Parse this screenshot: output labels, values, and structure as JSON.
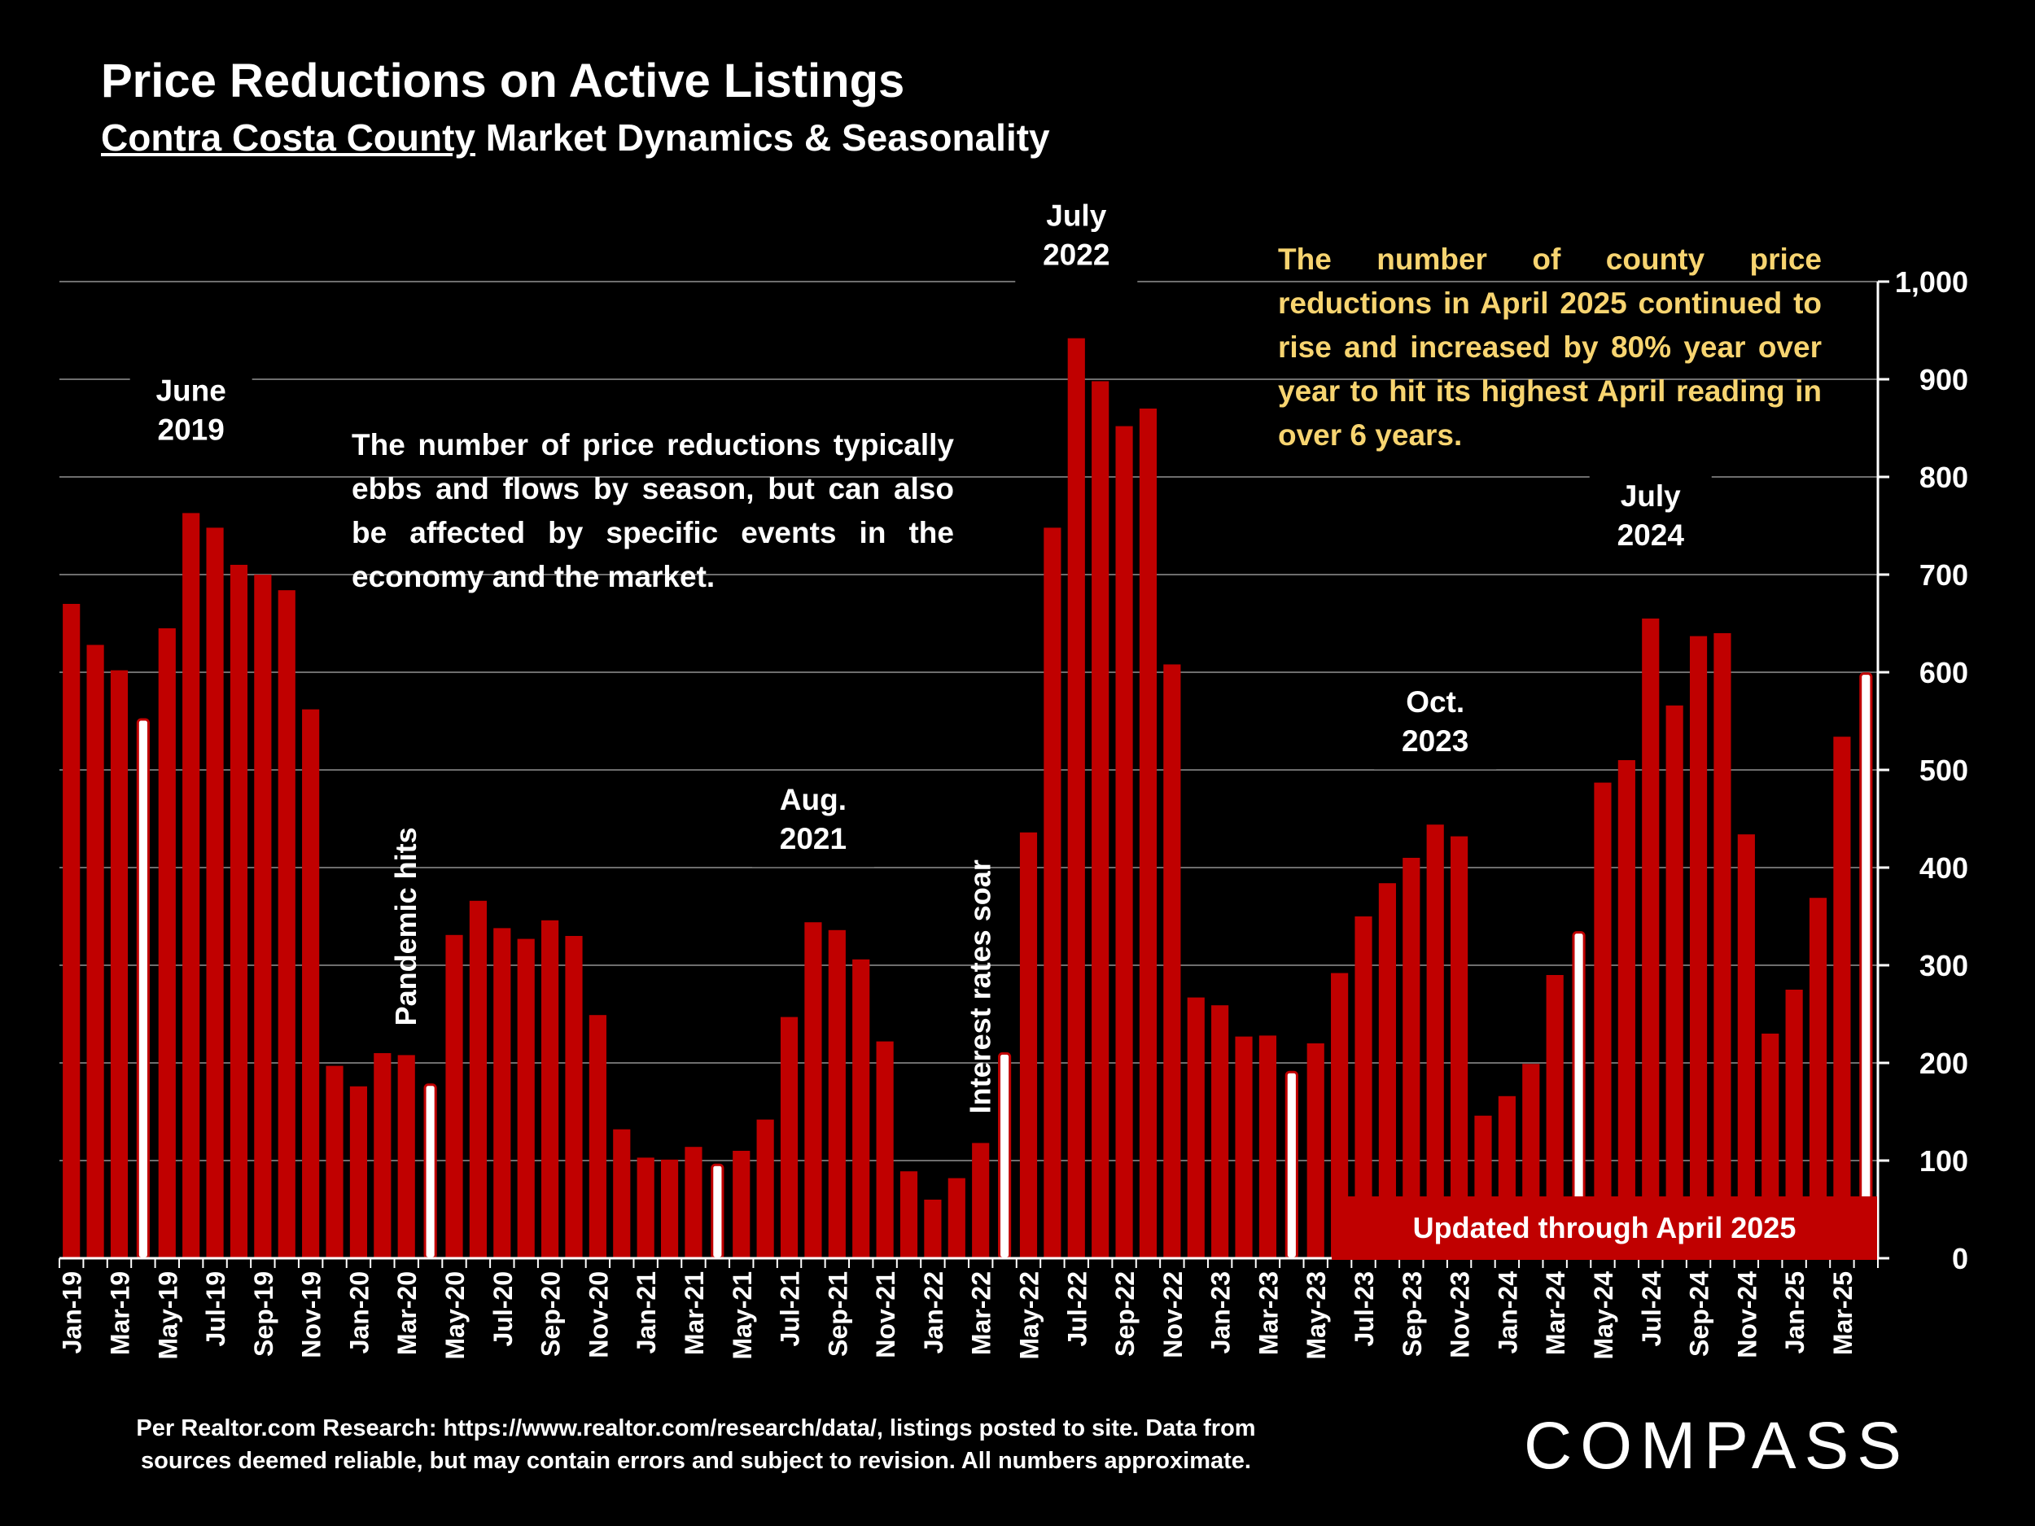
{
  "header": {
    "title": "Price Reductions on Active Listings",
    "subtitle_county": "Contra Costa County",
    "subtitle_rest": " Market Dynamics & Seasonality"
  },
  "notes": {
    "white": "The number of price reductions typically ebbs and flows by season, but can also be affected by specific events in the economy and the market.",
    "yellow": "The number of county price reductions in April 2025 continued to rise and increased by 80% year over year to hit its highest April reading in over 6 years."
  },
  "updated_label": "Updated through April 2025",
  "source": "Per Realtor.com Research:  https://www.realtor.com/research/data/, listings posted to site. Data from sources deemed reliable, but may contain errors and subject to revision. All numbers approximate.",
  "logo": "COMPASS",
  "colors": {
    "bar": "#c00000",
    "highlight": "#ffffff",
    "note_yellow": "#f7d470",
    "background": "#000000"
  },
  "chart_data": {
    "type": "bar",
    "ylim": [
      0,
      1000
    ],
    "yticks": [
      0,
      100,
      200,
      300,
      400,
      500,
      600,
      700,
      800,
      900,
      1000
    ],
    "ytick_labels": [
      "0",
      "100",
      "200",
      "300",
      "400",
      "500",
      "600",
      "700",
      "800",
      "900",
      "1,000"
    ],
    "y_axis_side": "right",
    "grid": true,
    "categories": [
      "Jan-19",
      "Feb-19",
      "Mar-19",
      "Apr-19",
      "May-19",
      "Jun-19",
      "Jul-19",
      "Aug-19",
      "Sep-19",
      "Oct-19",
      "Nov-19",
      "Dec-19",
      "Jan-20",
      "Feb-20",
      "Mar-20",
      "Apr-20",
      "May-20",
      "Jun-20",
      "Jul-20",
      "Aug-20",
      "Sep-20",
      "Oct-20",
      "Nov-20",
      "Dec-20",
      "Jan-21",
      "Feb-21",
      "Mar-21",
      "Apr-21",
      "May-21",
      "Jun-21",
      "Jul-21",
      "Aug-21",
      "Sep-21",
      "Oct-21",
      "Nov-21",
      "Dec-21",
      "Jan-22",
      "Feb-22",
      "Mar-22",
      "Apr-22",
      "May-22",
      "Jun-22",
      "Jul-22",
      "Aug-22",
      "Sep-22",
      "Oct-22",
      "Nov-22",
      "Dec-22",
      "Jan-23",
      "Feb-23",
      "Mar-23",
      "Apr-23",
      "May-23",
      "Jun-23",
      "Jul-23",
      "Aug-23",
      "Sep-23",
      "Oct-23",
      "Nov-23",
      "Dec-23",
      "Jan-24",
      "Feb-24",
      "Mar-24",
      "Apr-24",
      "May-24",
      "Jun-24",
      "Jul-24",
      "Aug-24",
      "Sep-24",
      "Oct-24",
      "Nov-24",
      "Dec-24",
      "Jan-25",
      "Feb-25",
      "Mar-25",
      "Apr-25"
    ],
    "x_tick_labels": [
      "Jan-19",
      "Mar-19",
      "May-19",
      "Jul-19",
      "Sep-19",
      "Nov-19",
      "Jan-20",
      "Mar-20",
      "May-20",
      "Jul-20",
      "Sep-20",
      "Nov-20",
      "Jan-21",
      "Mar-21",
      "May-21",
      "Jul-21",
      "Sep-21",
      "Nov-21",
      "Jan-22",
      "Mar-22",
      "May-22",
      "Jul-22",
      "Sep-22",
      "Nov-22",
      "Jan-23",
      "Mar-23",
      "May-23",
      "Jul-23",
      "Sep-23",
      "Nov-23",
      "Jan-24",
      "Mar-24",
      "May-24",
      "Jul-24",
      "Sep-24",
      "Nov-24",
      "Jan-25",
      "Mar-25"
    ],
    "values": [
      670,
      628,
      602,
      555,
      645,
      763,
      748,
      710,
      700,
      684,
      562,
      197,
      176,
      210,
      208,
      181,
      331,
      366,
      338,
      327,
      346,
      330,
      249,
      132,
      103,
      101,
      114,
      99,
      110,
      142,
      247,
      344,
      336,
      306,
      222,
      89,
      60,
      82,
      118,
      213,
      436,
      748,
      942,
      898,
      852,
      870,
      608,
      267,
      259,
      227,
      228,
      194,
      220,
      292,
      350,
      384,
      410,
      444,
      432,
      146,
      166,
      199,
      290,
      337,
      487,
      510,
      655,
      566,
      637,
      640,
      434,
      230,
      275,
      369,
      534,
      602
    ],
    "highlight_indices": [
      3,
      15,
      27,
      39,
      51,
      63,
      75
    ],
    "annotations": [
      {
        "text": [
          "June",
          "2019"
        ],
        "index": 5
      },
      {
        "text": [
          "Aug.",
          "2021"
        ],
        "index": 31
      },
      {
        "text": [
          "July",
          "2022"
        ],
        "index": 42
      },
      {
        "text": [
          "Oct.",
          "2023"
        ],
        "index": 57
      },
      {
        "text": [
          "July",
          "2024"
        ],
        "index": 66
      },
      {
        "text": [
          "Pandemic hits"
        ],
        "index": 14,
        "rotated": true
      },
      {
        "text": [
          "Interest rates soar"
        ],
        "index": 38,
        "rotated": true
      }
    ]
  }
}
